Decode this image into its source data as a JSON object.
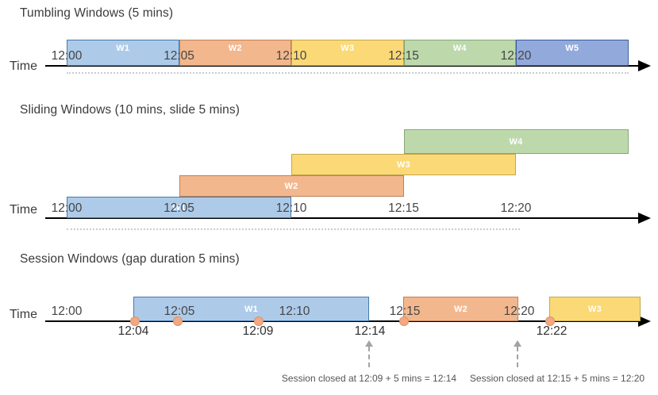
{
  "palette": {
    "blue": {
      "fill": "#ADCBE9",
      "border": "#4579AD"
    },
    "orange": {
      "fill": "#F3B78D",
      "border": "#BE8057"
    },
    "yellow": {
      "fill": "#FBD976",
      "border": "#C2A84E"
    },
    "green": {
      "fill": "#BDD9AB",
      "border": "#85A778"
    },
    "indigo": {
      "fill": "#92AADB",
      "border": "#3C5CA0"
    },
    "axis_color": "#000000",
    "event_dot_fill": "#F2A983",
    "event_dot_border": "#DD9264",
    "dashed_arrow_color": "#A3A3A3",
    "dotted_line_color": "#C9CDD1",
    "window_label_color": "#FFFFFF",
    "text_color": "#3B3B3B",
    "annotation_color": "#555555"
  },
  "sections": [
    {
      "title": "Tumbling Windows (5 mins)",
      "time_label": "Time",
      "ticks": [
        "12:00",
        "12:05",
        "12:10",
        "12:15",
        "12:20"
      ],
      "windows": [
        {
          "label": "W1",
          "color": "blue"
        },
        {
          "label": "W2",
          "color": "orange"
        },
        {
          "label": "W3",
          "color": "yellow"
        },
        {
          "label": "W4",
          "color": "green"
        },
        {
          "label": "W5",
          "color": "indigo"
        }
      ]
    },
    {
      "title": "Sliding Windows (10 mins, slide 5 mins)",
      "time_label": "Time",
      "ticks": [
        "12:00",
        "12:05",
        "12:10",
        "12:15",
        "12:20"
      ],
      "windows": [
        {
          "label": "W1",
          "color": "blue"
        },
        {
          "label": "W2",
          "color": "orange"
        },
        {
          "label": "W3",
          "color": "yellow"
        },
        {
          "label": "W4",
          "color": "green"
        }
      ]
    },
    {
      "title": "Session Windows (gap duration 5 mins)",
      "time_label": "Time",
      "ticks": [
        "12:00",
        "12:05",
        "12:10",
        "12:15",
        "12:20"
      ],
      "windows": [
        {
          "label": "W1",
          "color": "blue"
        },
        {
          "label": "W2",
          "color": "orange"
        },
        {
          "label": "W3",
          "color": "yellow"
        }
      ],
      "event_times": [
        "12:04",
        "12:09",
        "12:14",
        "12:22"
      ],
      "annotations": [
        "Session closed at 12:09 + 5 mins = 12:14",
        "Session closed at 12:15 + 5 mins = 12:20"
      ]
    }
  ]
}
